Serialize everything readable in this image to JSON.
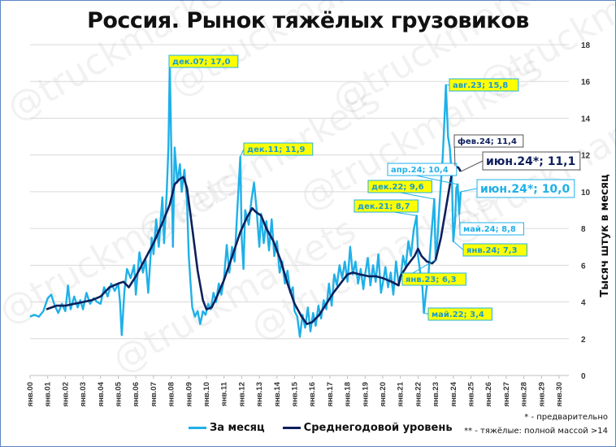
{
  "title": "Россия. Рынок тяжёлых грузовиков",
  "legend": {
    "monthly_label": "За месяц",
    "average_label": "Среднегодовой уровень",
    "monthly_color": "#1fb0e8",
    "average_color": "#0d1f5c"
  },
  "notes": {
    "note1": "* - предварительно",
    "note2": "** - тяжёлые: полной массой >14"
  },
  "watermark": "@truckmarkets",
  "chart_data": {
    "type": "line",
    "title": "Россия. Рынок тяжёлых грузовиков",
    "xlabel": "",
    "ylabel": "Тысяч штук в месяц",
    "ylim": [
      0,
      18
    ],
    "yticks": [
      0,
      2,
      4,
      6,
      8,
      10,
      12,
      14,
      16,
      18
    ],
    "xticks": [
      "янв.00",
      "янв.01",
      "янв.02",
      "янв.03",
      "янв.04",
      "янв.05",
      "янв.06",
      "янв.07",
      "янв.08",
      "янв.09",
      "янв.10",
      "янв.11",
      "янв.12",
      "янв.13",
      "янв.14",
      "янв.15",
      "янв.16",
      "янв.17",
      "янв.18",
      "янв.19",
      "янв.20",
      "янв.21",
      "янв.22",
      "янв.23",
      "янв.24",
      "янв.25",
      "янв.26",
      "янв.27",
      "янв.28",
      "янв.29",
      "янв.30"
    ],
    "grid": true,
    "y_axis_position": "right",
    "legend_position": "bottom",
    "series": [
      {
        "name": "За месяц",
        "color": "#1fb0e8",
        "points": [
          [
            2000.0,
            3.2
          ],
          [
            2000.25,
            3.3
          ],
          [
            2000.5,
            3.2
          ],
          [
            2000.75,
            3.5
          ],
          [
            2001.0,
            4.2
          ],
          [
            2001.2,
            4.4
          ],
          [
            2001.4,
            3.8
          ],
          [
            2001.6,
            3.4
          ],
          [
            2001.8,
            3.9
          ],
          [
            2002.0,
            3.5
          ],
          [
            2002.15,
            4.9
          ],
          [
            2002.3,
            3.6
          ],
          [
            2002.5,
            4.3
          ],
          [
            2002.7,
            3.7
          ],
          [
            2002.85,
            4.1
          ],
          [
            2003.0,
            3.6
          ],
          [
            2003.2,
            4.5
          ],
          [
            2003.4,
            3.9
          ],
          [
            2003.6,
            4.2
          ],
          [
            2003.8,
            4.0
          ],
          [
            2004.0,
            3.9
          ],
          [
            2004.2,
            4.8
          ],
          [
            2004.4,
            4.3
          ],
          [
            2004.6,
            5.0
          ],
          [
            2004.8,
            4.6
          ],
          [
            2005.0,
            5.0
          ],
          [
            2005.1,
            4.0
          ],
          [
            2005.2,
            2.2
          ],
          [
            2005.35,
            4.6
          ],
          [
            2005.5,
            5.8
          ],
          [
            2005.7,
            5.3
          ],
          [
            2005.9,
            6.0
          ],
          [
            2006.0,
            4.4
          ],
          [
            2006.2,
            6.7
          ],
          [
            2006.4,
            5.6
          ],
          [
            2006.55,
            6.3
          ],
          [
            2006.7,
            4.5
          ],
          [
            2006.9,
            7.5
          ],
          [
            2007.0,
            6.6
          ],
          [
            2007.15,
            8.5
          ],
          [
            2007.3,
            7.0
          ],
          [
            2007.5,
            9.7
          ],
          [
            2007.6,
            7.2
          ],
          [
            2007.75,
            10.0
          ],
          [
            2007.85,
            12.5
          ],
          [
            2007.92,
            17.0
          ],
          [
            2008.0,
            12.8
          ],
          [
            2008.1,
            7.0
          ],
          [
            2008.2,
            12.4
          ],
          [
            2008.35,
            10.5
          ],
          [
            2008.5,
            11.5
          ],
          [
            2008.6,
            10.0
          ],
          [
            2008.75,
            11.2
          ],
          [
            2008.9,
            9.5
          ],
          [
            2009.0,
            6.5
          ],
          [
            2009.1,
            5.0
          ],
          [
            2009.2,
            3.7
          ],
          [
            2009.35,
            3.2
          ],
          [
            2009.5,
            3.5
          ],
          [
            2009.65,
            2.8
          ],
          [
            2009.8,
            3.5
          ],
          [
            2009.95,
            3.3
          ],
          [
            2010.1,
            3.9
          ],
          [
            2010.25,
            3.6
          ],
          [
            2010.4,
            4.5
          ],
          [
            2010.55,
            4.0
          ],
          [
            2010.7,
            5.0
          ],
          [
            2010.85,
            4.4
          ],
          [
            2011.0,
            5.3
          ],
          [
            2011.15,
            7.1
          ],
          [
            2011.3,
            5.6
          ],
          [
            2011.45,
            7.0
          ],
          [
            2011.6,
            6.2
          ],
          [
            2011.75,
            9.0
          ],
          [
            2011.92,
            11.9
          ],
          [
            2012.0,
            7.5
          ],
          [
            2012.1,
            5.8
          ],
          [
            2012.2,
            9.0
          ],
          [
            2012.4,
            8.2
          ],
          [
            2012.55,
            9.5
          ],
          [
            2012.7,
            10.5
          ],
          [
            2012.85,
            9.0
          ],
          [
            2013.0,
            7.0
          ],
          [
            2013.1,
            8.8
          ],
          [
            2013.25,
            7.2
          ],
          [
            2013.4,
            8.4
          ],
          [
            2013.55,
            6.8
          ],
          [
            2013.7,
            8.5
          ],
          [
            2013.85,
            6.5
          ],
          [
            2014.0,
            7.3
          ],
          [
            2014.15,
            5.6
          ],
          [
            2014.3,
            6.2
          ],
          [
            2014.45,
            5.0
          ],
          [
            2014.6,
            5.7
          ],
          [
            2014.75,
            4.5
          ],
          [
            2014.9,
            4.8
          ],
          [
            2015.0,
            3.5
          ],
          [
            2015.15,
            3.2
          ],
          [
            2015.3,
            2.1
          ],
          [
            2015.45,
            3.3
          ],
          [
            2015.6,
            2.6
          ],
          [
            2015.75,
            3.7
          ],
          [
            2015.9,
            2.4
          ],
          [
            2016.05,
            3.4
          ],
          [
            2016.2,
            2.7
          ],
          [
            2016.35,
            3.8
          ],
          [
            2016.5,
            3.1
          ],
          [
            2016.65,
            4.1
          ],
          [
            2016.8,
            3.6
          ],
          [
            2016.95,
            5.0
          ],
          [
            2017.1,
            3.8
          ],
          [
            2017.25,
            5.5
          ],
          [
            2017.4,
            4.9
          ],
          [
            2017.55,
            6.0
          ],
          [
            2017.7,
            5.3
          ],
          [
            2017.85,
            6.2
          ],
          [
            2018.0,
            5.1
          ],
          [
            2018.15,
            7.0
          ],
          [
            2018.3,
            5.5
          ],
          [
            2018.45,
            6.2
          ],
          [
            2018.6,
            5.0
          ],
          [
            2018.75,
            5.8
          ],
          [
            2018.9,
            4.7
          ],
          [
            2019.0,
            5.5
          ],
          [
            2019.15,
            6.4
          ],
          [
            2019.3,
            4.9
          ],
          [
            2019.45,
            6.0
          ],
          [
            2019.6,
            5.1
          ],
          [
            2019.75,
            6.6
          ],
          [
            2019.9,
            4.5
          ],
          [
            2020.0,
            5.0
          ],
          [
            2020.15,
            5.9
          ],
          [
            2020.3,
            4.8
          ],
          [
            2020.45,
            5.6
          ],
          [
            2020.6,
            4.4
          ],
          [
            2020.75,
            6.2
          ],
          [
            2020.9,
            5.0
          ],
          [
            2021.0,
            5.2
          ],
          [
            2021.15,
            6.5
          ],
          [
            2021.3,
            5.9
          ],
          [
            2021.45,
            7.3
          ],
          [
            2021.6,
            6.5
          ],
          [
            2021.75,
            7.9
          ],
          [
            2021.92,
            8.7
          ],
          [
            2022.0,
            6.5
          ],
          [
            2022.15,
            5.4
          ],
          [
            2022.25,
            4.8
          ],
          [
            2022.33,
            3.4
          ],
          [
            2022.45,
            4.5
          ],
          [
            2022.6,
            5.6
          ],
          [
            2022.75,
            7.6
          ],
          [
            2022.92,
            9.6
          ],
          [
            2023.0,
            6.3
          ],
          [
            2023.1,
            7.4
          ],
          [
            2023.2,
            9.0
          ],
          [
            2023.3,
            10.5
          ],
          [
            2023.4,
            11.9
          ],
          [
            2023.5,
            14.0
          ],
          [
            2023.58,
            15.8
          ],
          [
            2023.7,
            13.0
          ],
          [
            2023.8,
            12.4
          ],
          [
            2023.92,
            10.7
          ],
          [
            2024.0,
            7.3
          ],
          [
            2024.1,
            8.4
          ],
          [
            2024.17,
            10.2
          ],
          [
            2024.25,
            10.4
          ],
          [
            2024.33,
            8.8
          ],
          [
            2024.42,
            10.0
          ]
        ]
      },
      {
        "name": "Среднегодовой уровень",
        "color": "#0d1f5c",
        "points": [
          [
            2000.92,
            3.6
          ],
          [
            2001.5,
            3.8
          ],
          [
            2002.0,
            3.8
          ],
          [
            2002.5,
            3.9
          ],
          [
            2003.0,
            4.0
          ],
          [
            2003.5,
            4.1
          ],
          [
            2004.0,
            4.3
          ],
          [
            2004.5,
            4.8
          ],
          [
            2005.0,
            5.0
          ],
          [
            2005.3,
            5.1
          ],
          [
            2005.6,
            4.8
          ],
          [
            2006.0,
            5.4
          ],
          [
            2006.5,
            6.3
          ],
          [
            2007.0,
            7.2
          ],
          [
            2007.5,
            8.3
          ],
          [
            2007.92,
            9.3
          ],
          [
            2008.2,
            10.4
          ],
          [
            2008.5,
            10.7
          ],
          [
            2008.7,
            10.8
          ],
          [
            2008.9,
            10.2
          ],
          [
            2009.2,
            8.0
          ],
          [
            2009.5,
            5.7
          ],
          [
            2009.8,
            4.1
          ],
          [
            2010.0,
            3.6
          ],
          [
            2010.3,
            3.7
          ],
          [
            2010.6,
            4.3
          ],
          [
            2011.0,
            5.2
          ],
          [
            2011.5,
            6.6
          ],
          [
            2011.92,
            7.8
          ],
          [
            2012.3,
            8.6
          ],
          [
            2012.6,
            9.1
          ],
          [
            2012.8,
            8.9
          ],
          [
            2013.1,
            8.7
          ],
          [
            2013.4,
            8.0
          ],
          [
            2013.8,
            7.3
          ],
          [
            2014.2,
            6.3
          ],
          [
            2014.6,
            5.0
          ],
          [
            2015.0,
            3.9
          ],
          [
            2015.4,
            3.2
          ],
          [
            2015.7,
            2.8
          ],
          [
            2016.0,
            2.9
          ],
          [
            2016.4,
            3.3
          ],
          [
            2016.8,
            3.9
          ],
          [
            2017.2,
            4.5
          ],
          [
            2017.6,
            5.0
          ],
          [
            2018.0,
            5.5
          ],
          [
            2018.3,
            5.6
          ],
          [
            2018.7,
            5.5
          ],
          [
            2019.2,
            5.4
          ],
          [
            2019.6,
            5.4
          ],
          [
            2020.0,
            5.3
          ],
          [
            2020.5,
            5.1
          ],
          [
            2020.9,
            4.9
          ],
          [
            2021.0,
            5.4
          ],
          [
            2021.4,
            6.0
          ],
          [
            2021.8,
            6.5
          ],
          [
            2022.0,
            6.9
          ],
          [
            2022.2,
            6.5
          ],
          [
            2022.5,
            6.2
          ],
          [
            2022.8,
            6.1
          ],
          [
            2023.0,
            6.3
          ],
          [
            2023.3,
            7.5
          ],
          [
            2023.6,
            9.2
          ],
          [
            2023.9,
            10.9
          ],
          [
            2024.1,
            11.4
          ],
          [
            2024.3,
            11.3
          ],
          [
            2024.42,
            11.1
          ]
        ]
      }
    ],
    "annotations": [
      {
        "label": "дек.07; 17,0",
        "x": 2007.92,
        "y": 17.0,
        "style": "yellow"
      },
      {
        "label": "дек.11; 11,9",
        "x": 2011.92,
        "y": 11.9,
        "style": "yellow"
      },
      {
        "label": "дек.21; 8,7",
        "x": 2021.92,
        "y": 8.7,
        "style": "yellow"
      },
      {
        "label": "дек.22; 9,6",
        "x": 2022.92,
        "y": 9.6,
        "style": "yellow"
      },
      {
        "label": "янв.23; 6,3",
        "x": 2023.0,
        "y": 6.3,
        "style": "yellow"
      },
      {
        "label": "май.22; 3,4",
        "x": 2022.33,
        "y": 3.4,
        "style": "yellow"
      },
      {
        "label": "авг.23; 15,8",
        "x": 2023.58,
        "y": 15.8,
        "style": "yellow"
      },
      {
        "label": "янв.24; 7,3",
        "x": 2024.0,
        "y": 7.3,
        "style": "yellow"
      },
      {
        "label": "апр.24; 10,4",
        "x": 2024.25,
        "y": 10.4,
        "style": "light-blue"
      },
      {
        "label": "май.24; 8,8",
        "x": 2024.33,
        "y": 8.8,
        "style": "light-blue"
      },
      {
        "label": "июн.24*; 10,0",
        "x": 2024.42,
        "y": 10.0,
        "style": "light-blue-large"
      },
      {
        "label": "фев.24; 11,4",
        "x": 2024.1,
        "y": 11.4,
        "style": "dark"
      },
      {
        "label": "июн.24*; 11,1",
        "x": 2024.42,
        "y": 11.1,
        "style": "dark-large"
      }
    ]
  }
}
